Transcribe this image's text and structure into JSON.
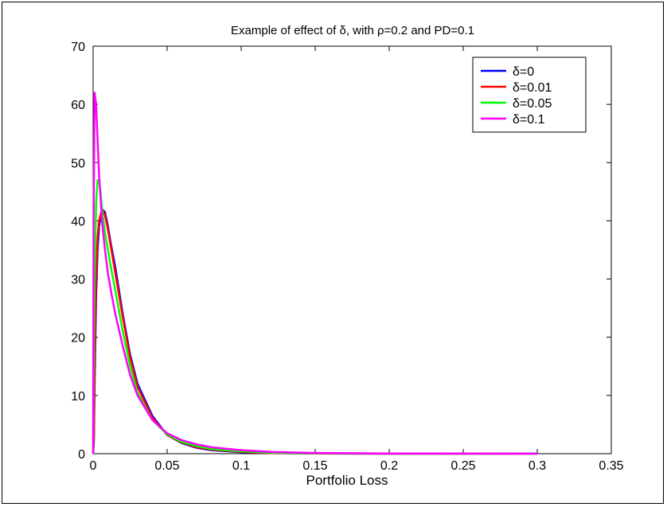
{
  "chart_data": {
    "type": "line",
    "title": "Example of effect of δ, with ρ=0.2 and PD=0.1",
    "xlabel": "Portfolio Loss",
    "ylabel": "",
    "xlim": [
      0,
      0.35
    ],
    "ylim": [
      0,
      70
    ],
    "x_ticks": [
      "0",
      "0.05",
      "0.1",
      "0.15",
      "0.2",
      "0.25",
      "0.3",
      "0.35"
    ],
    "y_ticks": [
      "0",
      "10",
      "20",
      "30",
      "40",
      "50",
      "60",
      "70"
    ],
    "grid": false,
    "legend_position": "top-right",
    "series": [
      {
        "name": "δ=0",
        "color": "#0000ff",
        "x": [
          0.0005,
          0.001,
          0.002,
          0.003,
          0.004,
          0.006,
          0.008,
          0.01,
          0.012,
          0.015,
          0.02,
          0.025,
          0.03,
          0.04,
          0.05,
          0.06,
          0.07,
          0.08,
          0.1,
          0.12,
          0.15,
          0.2,
          0.25,
          0.3
        ],
        "y": [
          2,
          12,
          27,
          35,
          39,
          42,
          41.5,
          39,
          36,
          32,
          24,
          17,
          12,
          6.5,
          3.2,
          1.8,
          1.0,
          0.6,
          0.25,
          0.1,
          0.03,
          0.0,
          0.0,
          0.0
        ]
      },
      {
        "name": "δ=0.01",
        "color": "#ff0000",
        "x": [
          0.0005,
          0.001,
          0.002,
          0.003,
          0.004,
          0.006,
          0.008,
          0.01,
          0.012,
          0.015,
          0.02,
          0.025,
          0.03,
          0.04,
          0.05,
          0.06,
          0.07,
          0.08,
          0.1,
          0.12,
          0.15,
          0.2,
          0.25,
          0.3
        ],
        "y": [
          3,
          16,
          30,
          37,
          40,
          42,
          41,
          38.5,
          35.5,
          31,
          23.5,
          16.5,
          11.5,
          6.2,
          3.2,
          1.9,
          1.1,
          0.7,
          0.3,
          0.12,
          0.04,
          0.0,
          0.0,
          0.0
        ]
      },
      {
        "name": "δ=0.05",
        "color": "#00ff00",
        "x": [
          0.0003,
          0.001,
          0.002,
          0.003,
          0.004,
          0.005,
          0.006,
          0.008,
          0.01,
          0.012,
          0.015,
          0.02,
          0.025,
          0.03,
          0.04,
          0.05,
          0.06,
          0.07,
          0.08,
          0.1,
          0.12,
          0.15,
          0.2,
          0.25,
          0.3
        ],
        "y": [
          10,
          30,
          43,
          47,
          47,
          45,
          42,
          38,
          35,
          32,
          28,
          21,
          15,
          10.5,
          5.8,
          3.3,
          2.0,
          1.3,
          0.8,
          0.4,
          0.18,
          0.06,
          0.01,
          0.0,
          0.0
        ]
      },
      {
        "name": "δ=0.1",
        "color": "#ff00ff",
        "x": [
          0.0003,
          0.001,
          0.002,
          0.003,
          0.004,
          0.005,
          0.006,
          0.008,
          0.01,
          0.012,
          0.015,
          0.02,
          0.025,
          0.03,
          0.04,
          0.05,
          0.06,
          0.07,
          0.08,
          0.1,
          0.12,
          0.15,
          0.2,
          0.25,
          0.3
        ],
        "y": [
          40,
          62,
          60,
          54,
          48,
          44,
          40,
          35,
          31,
          28,
          24,
          18.5,
          13.5,
          10,
          5.8,
          3.5,
          2.3,
          1.6,
          1.1,
          0.6,
          0.3,
          0.12,
          0.03,
          0.01,
          0.0
        ]
      }
    ]
  }
}
